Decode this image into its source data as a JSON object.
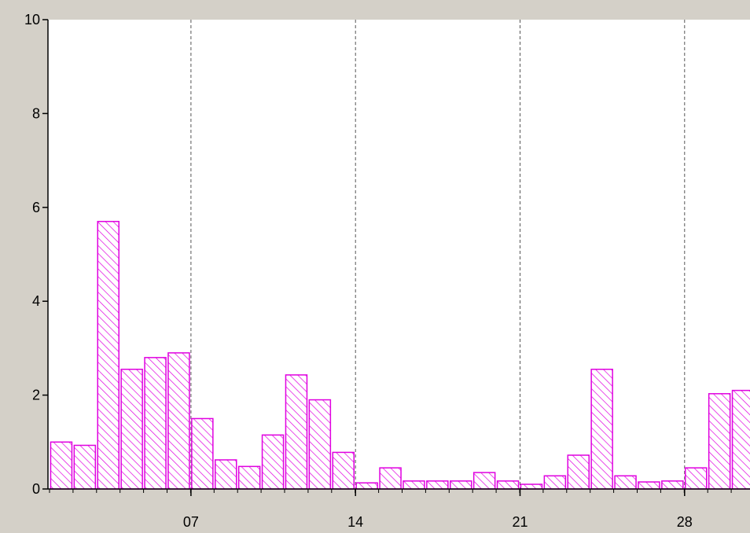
{
  "chart_data": {
    "type": "bar",
    "title": "",
    "xlabel": "",
    "ylabel": "",
    "ylim": [
      0,
      10
    ],
    "y_ticks": [
      "0",
      "2",
      "4",
      "6",
      "8",
      "10"
    ],
    "x_ticks": [
      {
        "label": "07",
        "day": 7
      },
      {
        "label": "14",
        "day": 14
      },
      {
        "label": "21",
        "day": 21
      },
      {
        "label": "28",
        "day": 28
      }
    ],
    "grid": "vertical dashed lines at labeled days",
    "bar_fill": "diagonal hatch",
    "bar_color": "#e000e0",
    "plot_background": "#ffffff",
    "days": [
      1,
      2,
      3,
      4,
      5,
      6,
      7,
      8,
      9,
      10,
      11,
      12,
      13,
      14,
      15,
      16,
      17,
      18,
      19,
      20,
      21,
      22,
      23,
      24,
      25,
      26,
      27,
      28,
      29,
      30
    ],
    "values": [
      1.0,
      0.93,
      5.7,
      2.55,
      2.8,
      2.9,
      1.5,
      0.62,
      0.48,
      1.15,
      2.43,
      1.9,
      0.78,
      0.13,
      0.45,
      0.17,
      0.17,
      0.17,
      0.35,
      0.17,
      0.1,
      0.28,
      0.72,
      2.55,
      0.28,
      0.15,
      0.17,
      0.45,
      2.03,
      2.1
    ]
  }
}
